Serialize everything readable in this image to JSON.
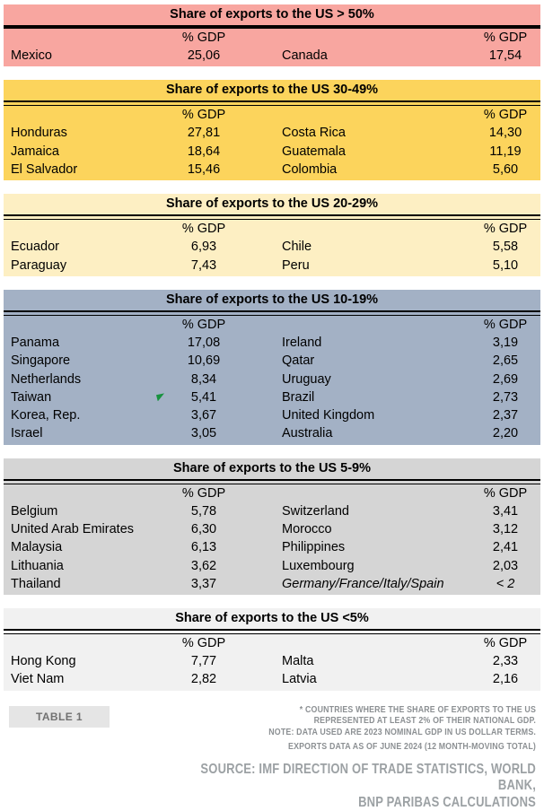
{
  "labels": {
    "gdp": "% GDP"
  },
  "colors": {
    "band_gt_50": "#F8A6A0",
    "band_30_49": "#FCD45C",
    "band_20_29": "#FDEFC3",
    "band_10_19": "#A3B1C5",
    "band_5_9": "#D5D5D5",
    "band_lt_5": "#F1F1F1",
    "marker_green": "#18923F"
  },
  "sections": [
    {
      "id": "gt-50",
      "title": "Share of exports to the US > 50%",
      "bg": "#F8A6A0",
      "separator": "thick",
      "rows": [
        {
          "c1": "Mexico",
          "v1": "25,06",
          "c2": "Canada",
          "v2": "17,54"
        }
      ]
    },
    {
      "id": "30-49",
      "title": "Share of exports to the US 30-49%",
      "bg": "#FCD45C",
      "separator": "double",
      "rows": [
        {
          "c1": "Honduras",
          "v1": "27,81",
          "c2": "Costa Rica",
          "v2": "14,30"
        },
        {
          "c1": "Jamaica",
          "v1": "18,64",
          "c2": "Guatemala",
          "v2": "11,19"
        },
        {
          "c1": "El Salvador",
          "v1": "15,46",
          "c2": "Colombia",
          "v2": "5,60"
        }
      ]
    },
    {
      "id": "20-29",
      "title": "Share of exports to the US 20-29%",
      "bg": "#FDEFC3",
      "separator": "double",
      "rows": [
        {
          "c1": "Ecuador",
          "v1": "6,93",
          "c2": "Chile",
          "v2": "5,58"
        },
        {
          "c1": "Paraguay",
          "v1": "7,43",
          "c2": "Peru",
          "v2": "5,10"
        }
      ]
    },
    {
      "id": "10-19",
      "title": "Share of exports to the US 10-19%",
      "bg": "#A3B1C5",
      "separator": "double",
      "rows": [
        {
          "c1": "Panama",
          "v1": "17,08",
          "c2": "Ireland",
          "v2": "3,19"
        },
        {
          "c1": "Singapore",
          "v1": "10,69",
          "c2": "Qatar",
          "v2": "2,65"
        },
        {
          "c1": "Netherlands",
          "v1": "8,34",
          "c2": "Uruguay",
          "v2": "2,69"
        },
        {
          "c1": "Taiwan",
          "v1": "5,41",
          "c2": "Brazil",
          "v2": "2,73",
          "marker": "green-flag"
        },
        {
          "c1": "Korea, Rep.",
          "v1": "3,67",
          "c2": "United Kingdom",
          "v2": "2,37"
        },
        {
          "c1": "Israel",
          "v1": "3,05",
          "c2": "Australia",
          "v2": "2,20"
        }
      ]
    },
    {
      "id": "5-9",
      "title": "Share of exports to the US 5-9%",
      "bg": "#D5D5D5",
      "separator": "double",
      "rows": [
        {
          "c1": "Belgium",
          "v1": "5,78",
          "c2": "Switzerland",
          "v2": "3,41"
        },
        {
          "c1": "United Arab Emirates",
          "v1": "6,30",
          "c2": "Morocco",
          "v2": "3,12"
        },
        {
          "c1": "Malaysia",
          "v1": "6,13",
          "c2": "Philippines",
          "v2": "2,41"
        },
        {
          "c1": "Lithuania",
          "v1": "3,62",
          "c2": "Luxembourg",
          "v2": "2,03"
        },
        {
          "c1": "Thailand",
          "v1": "3,37",
          "c2": "Germany/France/Italy/Spain",
          "v2": "< 2",
          "italic2": true
        }
      ]
    },
    {
      "id": "lt-5",
      "title": "Share of exports to the US <5%",
      "bg": "#F1F1F1",
      "separator": "double",
      "rows": [
        {
          "c1": "Hong Kong",
          "v1": "7,77",
          "c2": "Malta",
          "v2": "2,33"
        },
        {
          "c1": "Viet Nam",
          "v1": "2,82",
          "c2": "Latvia",
          "v2": "2,16"
        }
      ]
    }
  ],
  "footer": {
    "table_label": "TABLE 1",
    "footnote_lines": [
      "* COUNTRIES WHERE THE SHARE OF EXPORTS TO THE US",
      "REPRESENTED AT LEAST 2% OF THEIR NATIONAL GDP.",
      "NOTE: DATA USED ARE 2023 NOMINAL GDP IN US DOLLAR TERMS.",
      "EXPORTS DATA AS OF JUNE 2024 (12 MONTH-MOVING TOTAL)"
    ],
    "source_lines": [
      "SOURCE: IMF DIRECTION OF TRADE STATISTICS, WORLD BANK,",
      "BNP PARIBAS CALCULATIONS"
    ]
  }
}
